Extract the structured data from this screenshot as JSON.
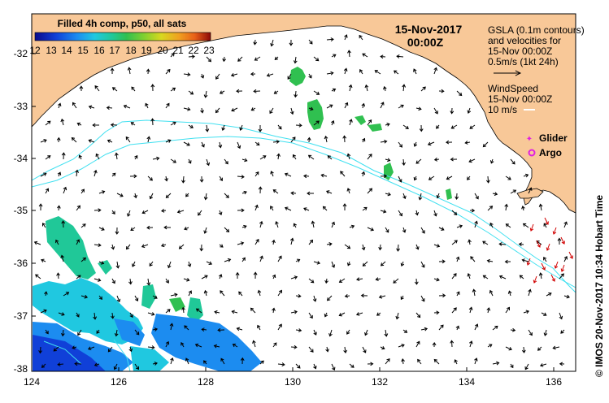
{
  "colorbar": {
    "title": "Filled 4h comp, p50, all sats",
    "ticks": [
      "12",
      "13",
      "14",
      "15",
      "16",
      "17",
      "18",
      "19",
      "20",
      "21",
      "22",
      "23"
    ],
    "colors": [
      "#0a0a8c",
      "#1040d8",
      "#1c8cf0",
      "#20c8e0",
      "#20c898",
      "#30c050",
      "#80d030",
      "#d8d820",
      "#f0a020",
      "#e86018",
      "#c02010",
      "#8c0808"
    ]
  },
  "map": {
    "date": "15-Nov-2017",
    "time": "00:00Z",
    "lon_ticks": [
      "124",
      "126",
      "128",
      "130",
      "132",
      "134",
      "136"
    ],
    "lat_ticks": [
      "-32",
      "-33",
      "-34",
      "-35",
      "-36",
      "-37",
      "-38"
    ],
    "lon_range": [
      124,
      136.6
    ],
    "lat_range": [
      -38.05,
      -31.6
    ],
    "land_color": "#f8c898",
    "contour_color": "#40e0f0",
    "vector_color": "#000000",
    "wind_vector_color": "#d00000"
  },
  "legend": {
    "gsla_line1": "GSLA (0.1m contours)",
    "gsla_line2": "and velocities for",
    "gsla_line3": "15-Nov 00:00Z",
    "gsla_line4": "0.5m/s (1kt 24h)",
    "wind_line1": "WindSpeed",
    "wind_line2": "15-Nov 00:00Z",
    "wind_line3": "10 m/s",
    "glider_label": "Glider",
    "argo_label": "Argo",
    "glider_color": "#e020e0",
    "argo_color": "#e020e0"
  },
  "credit": "© IMOS 20-Nov-2017 10:34 Hobart Time"
}
